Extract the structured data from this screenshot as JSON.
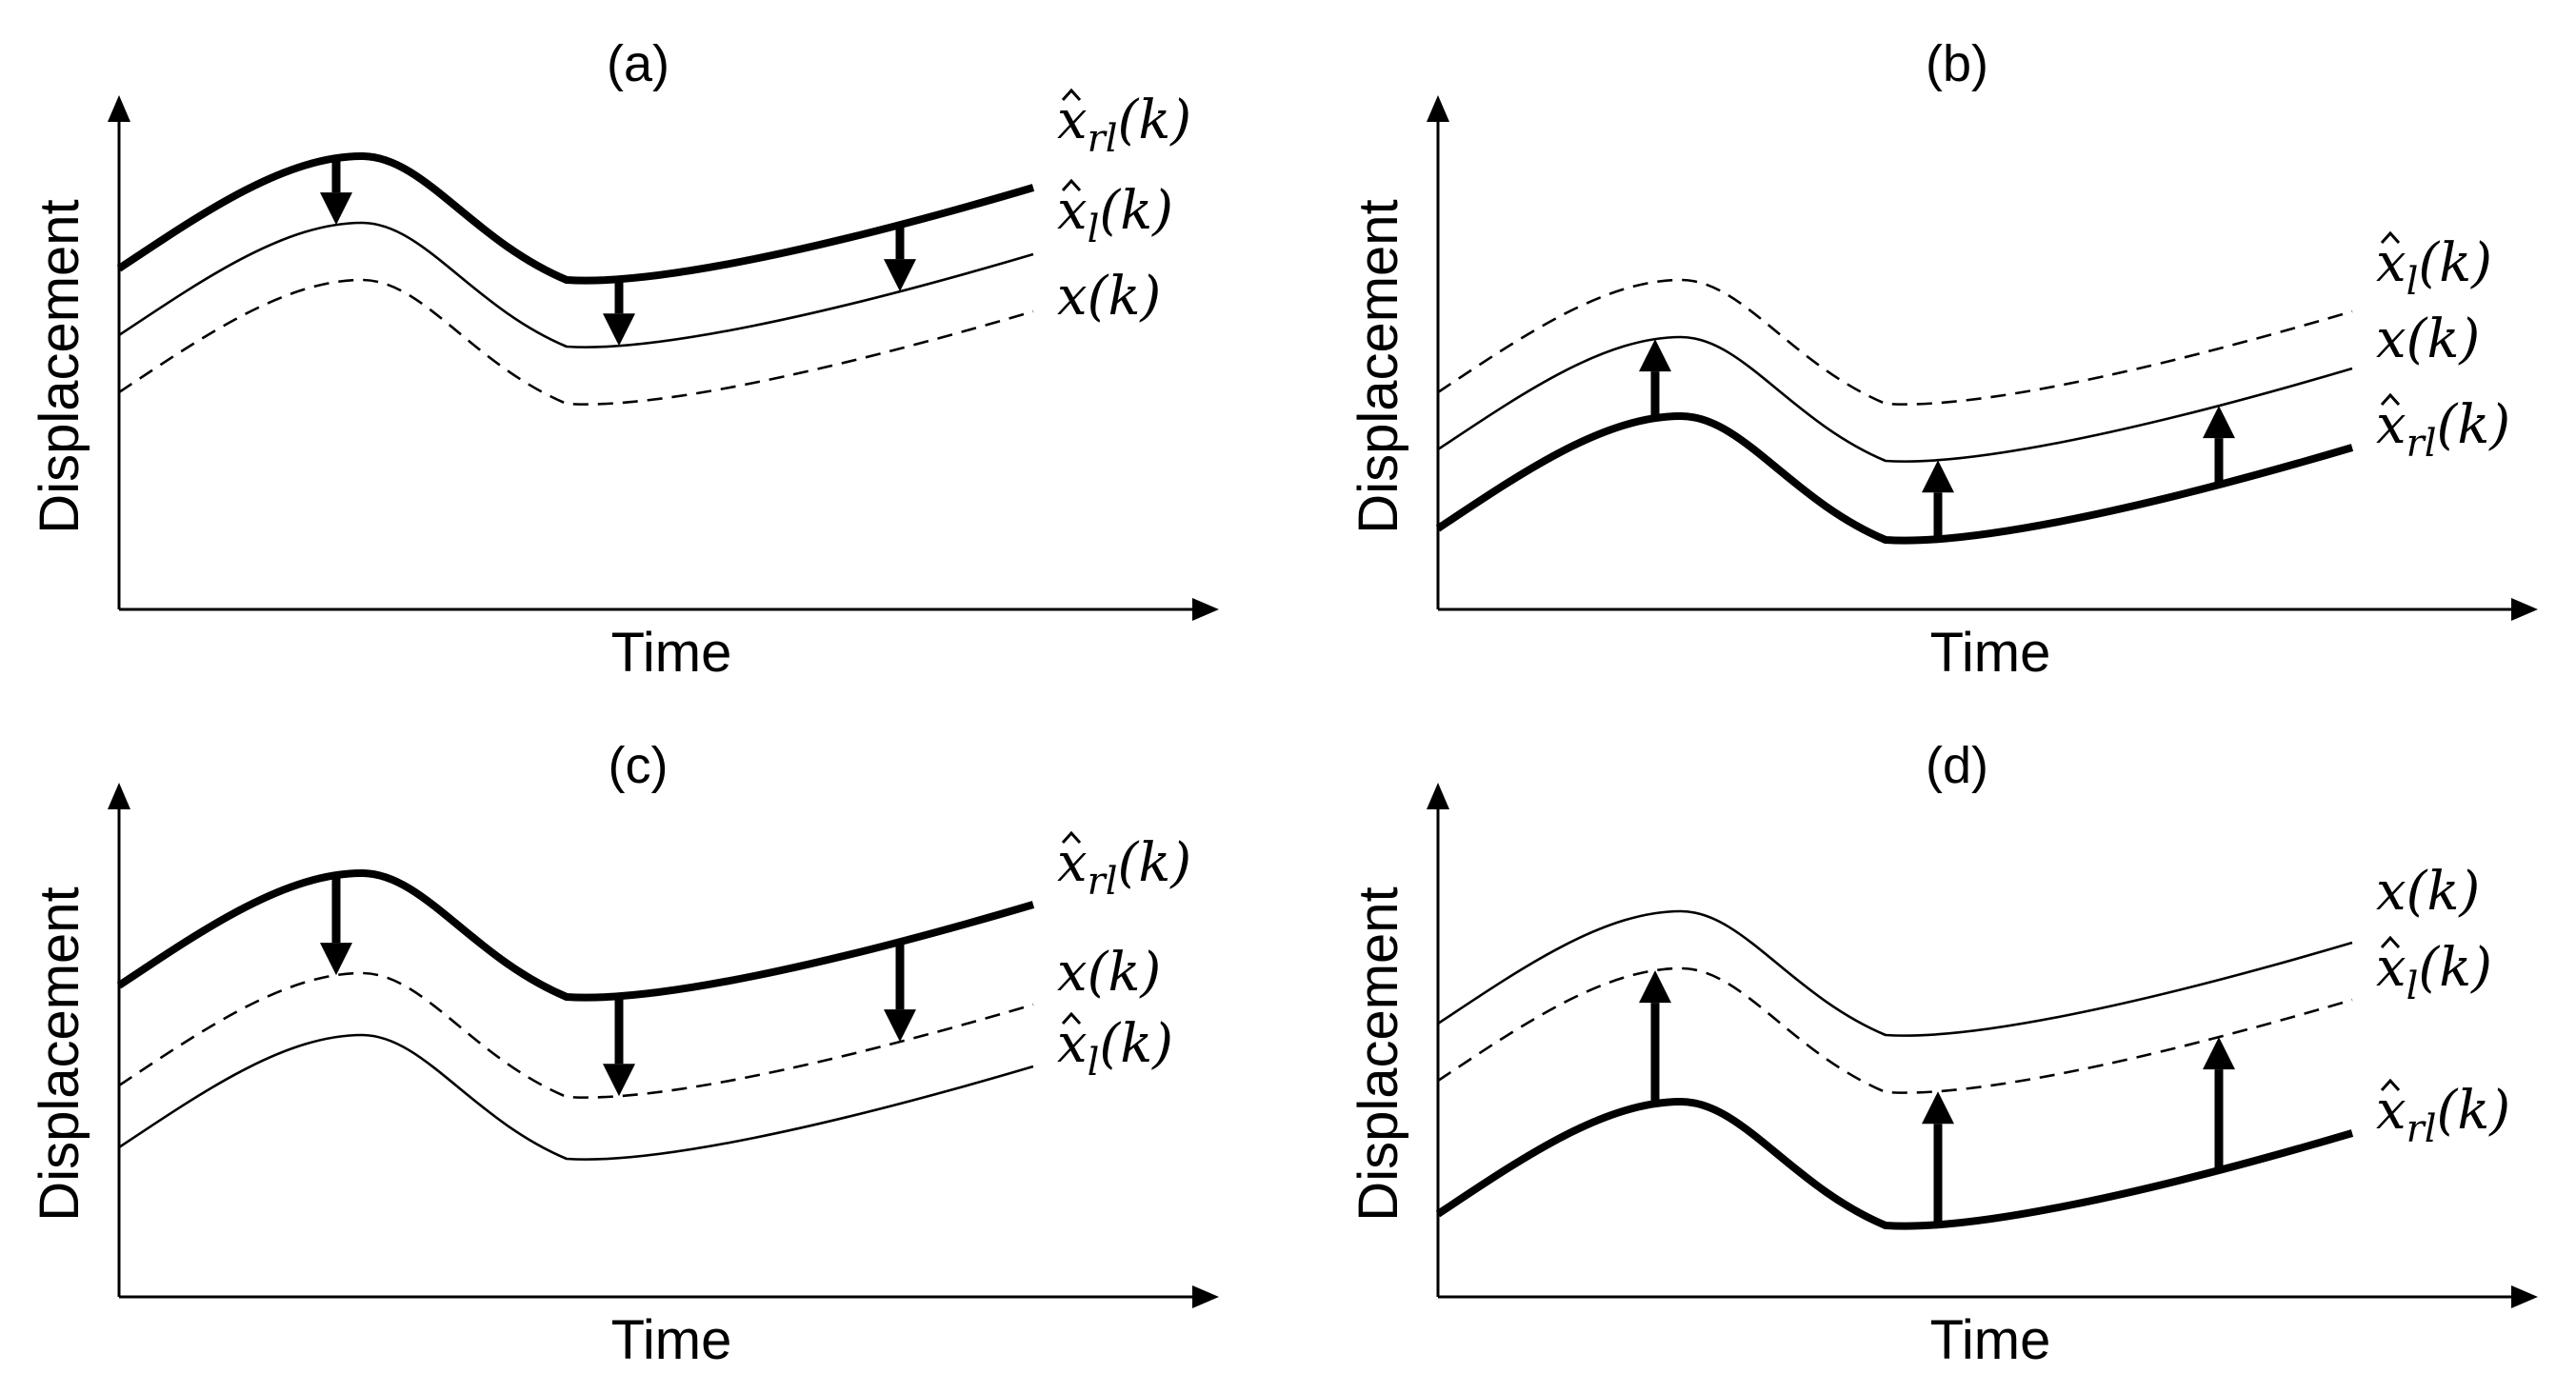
{
  "figure": {
    "panels": [
      {
        "id": "a",
        "label": "(a)",
        "x_axis_label": "Time",
        "y_axis_label": "Displacement",
        "arrow_direction": "down",
        "curves": [
          {
            "role": "thick",
            "label": "x̂_rl(k)"
          },
          {
            "role": "thin",
            "label": "x̂_l(k)"
          },
          {
            "role": "dashed",
            "label": "x(k)"
          }
        ]
      },
      {
        "id": "b",
        "label": "(b)",
        "x_axis_label": "Time",
        "y_axis_label": "Displacement",
        "arrow_direction": "up",
        "curves": [
          {
            "role": "dashed",
            "label": "x̂_l(k)"
          },
          {
            "role": "thin",
            "label": "x(k)"
          },
          {
            "role": "thick",
            "label": "x̂_rl(k)"
          }
        ]
      },
      {
        "id": "c",
        "label": "(c)",
        "x_axis_label": "Time",
        "y_axis_label": "Displacement",
        "arrow_direction": "down",
        "curves": [
          {
            "role": "thick",
            "label": "x̂_rl(k)"
          },
          {
            "role": "dashed",
            "label": "x(k)"
          },
          {
            "role": "thin",
            "label": "x̂_l(k)"
          }
        ]
      },
      {
        "id": "d",
        "label": "(d)",
        "x_axis_label": "Time",
        "y_axis_label": "Displacement",
        "arrow_direction": "up",
        "curves": [
          {
            "role": "thin",
            "label": "x(k)"
          },
          {
            "role": "dashed",
            "label": "x̂_l(k)"
          },
          {
            "role": "thick",
            "label": "x̂_rl(k)"
          }
        ]
      }
    ]
  }
}
